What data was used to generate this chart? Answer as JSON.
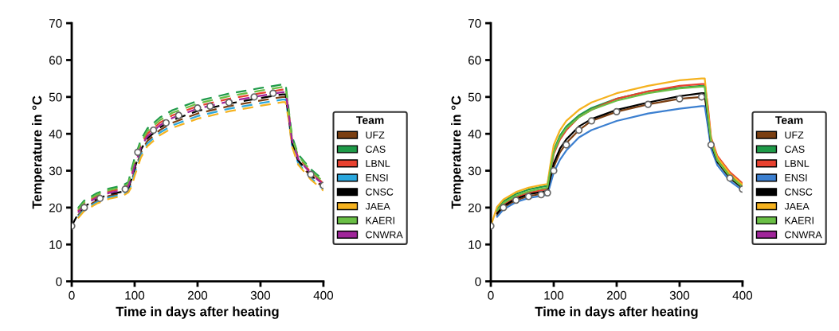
{
  "chart_data": [
    {
      "type": "line",
      "line_style": "dashed",
      "xlabel": "Time in days after heating",
      "ylabel": "Temperature in °C",
      "legend_title": "Team",
      "legend": "right",
      "grid": false,
      "marker": "none",
      "xlim": [
        0,
        400
      ],
      "ylim": [
        0,
        70
      ],
      "xticks": [
        0,
        100,
        200,
        300,
        400
      ],
      "yticks": [
        0,
        10,
        20,
        30,
        40,
        50,
        60,
        70
      ],
      "x": [
        0,
        10,
        20,
        40,
        60,
        80,
        90,
        95,
        100,
        110,
        120,
        140,
        160,
        200,
        250,
        300,
        335,
        340,
        345,
        350,
        360,
        380,
        400
      ],
      "series": [
        {
          "name": "UFZ",
          "color": "#7b3f12",
          "values": [
            null,
            17.9,
            19.9,
            21.9,
            23.2,
            23.9,
            24.9,
            27,
            30,
            35,
            38,
            41,
            43,
            45.5,
            47.5,
            49,
            50,
            50,
            44.4,
            37.4,
            32.4,
            28.4,
            25.4
          ]
        },
        {
          "name": "CAS",
          "color": "#1e9a48",
          "values": [
            null,
            19.9,
            21.9,
            23.9,
            25.2,
            25.9,
            26.9,
            30.4,
            33.4,
            38.4,
            41.4,
            44.4,
            46.4,
            48.9,
            50.9,
            52.4,
            53.4,
            53.4,
            46.4,
            39.4,
            34.4,
            30.4,
            27.4
          ]
        },
        {
          "name": "LBNL",
          "color": "#e8412f",
          "values": [
            null,
            19.1,
            21.1,
            23.1,
            24.4,
            25.1,
            26.1,
            29,
            32,
            37,
            40,
            43,
            45,
            47.5,
            49.5,
            51,
            52,
            52,
            45.6,
            38.6,
            33.6,
            29.6,
            26.6
          ]
        },
        {
          "name": "ENSI",
          "color": "#2aa7dd",
          "values": [
            null,
            17.5,
            19.5,
            21.5,
            22.8,
            23.5,
            24.5,
            26.3,
            29.3,
            34.3,
            37.3,
            40.3,
            42.3,
            44.8,
            46.8,
            48.3,
            49.3,
            49.3,
            44,
            37,
            32,
            28,
            25
          ]
        },
        {
          "name": "CNSC",
          "color": "#000000",
          "values": [
            15,
            18.3,
            20.3,
            22.3,
            23.6,
            24.3,
            25.3,
            27.7,
            30.7,
            35.7,
            38.7,
            41.7,
            43.7,
            46.2,
            48.2,
            49.7,
            50.7,
            50.7,
            44.8,
            37.8,
            32.8,
            28.8,
            25.8
          ]
        },
        {
          "name": "JAEA",
          "color": "#f5b21f",
          "values": [
            null,
            17.1,
            19.1,
            21.1,
            22.4,
            23.1,
            24.1,
            25.6,
            28.6,
            33.6,
            36.6,
            39.6,
            41.6,
            44.1,
            46.1,
            47.6,
            48.6,
            48.6,
            43.6,
            36.6,
            31.6,
            27.6,
            24.6
          ]
        },
        {
          "name": "KAERI",
          "color": "#6abf45",
          "values": [
            null,
            19.5,
            21.5,
            23.5,
            24.8,
            25.5,
            26.5,
            29.7,
            32.7,
            37.7,
            40.7,
            43.7,
            45.7,
            48.2,
            50.2,
            51.7,
            52.7,
            52.7,
            46,
            39,
            34,
            30,
            27
          ]
        },
        {
          "name": "CNWRA",
          "color": "#a0259a",
          "values": [
            null,
            18.7,
            20.7,
            22.7,
            24,
            24.7,
            25.7,
            28.3,
            31.3,
            36.3,
            39.3,
            42.3,
            44.3,
            46.8,
            48.8,
            50.3,
            51.3,
            51.3,
            45.2,
            38.2,
            33.2,
            29.2,
            26.2
          ]
        },
        {
          "type": "scatter",
          "marker": "circle",
          "color": "#666666",
          "x": [
            0,
            20,
            45,
            85,
            105,
            130,
            150,
            170,
            200,
            220,
            250,
            290,
            320,
            380,
            400
          ],
          "values": [
            15,
            20,
            22.5,
            25,
            35,
            41,
            43,
            45,
            47,
            47.5,
            48.5,
            50,
            51,
            29,
            26
          ]
        }
      ]
    },
    {
      "type": "line",
      "line_style": "solid",
      "xlabel": "Time in days after heating",
      "ylabel": "Temperature in °C",
      "legend_title": "Team",
      "legend": "right",
      "grid": false,
      "marker": "none",
      "xlim": [
        0,
        400
      ],
      "ylim": [
        0,
        70
      ],
      "xticks": [
        0,
        100,
        200,
        300,
        400
      ],
      "yticks": [
        0,
        10,
        20,
        30,
        40,
        50,
        60,
        70
      ],
      "x": [
        0,
        10,
        20,
        40,
        60,
        80,
        90,
        95,
        100,
        110,
        120,
        140,
        160,
        200,
        250,
        300,
        335,
        340,
        345,
        350,
        360,
        380,
        400
      ],
      "series": [
        {
          "name": "UFZ",
          "color": "#7b3f12",
          "values": [
            null,
            18,
            20,
            22,
            23.1,
            23.7,
            24,
            27,
            31,
            35,
            37.5,
            41,
            43.5,
            46,
            48,
            49.5,
            50,
            50,
            44,
            37,
            32,
            null,
            null
          ]
        },
        {
          "name": "CAS",
          "color": "#1e9a48",
          "values": [
            null,
            19.7,
            21.7,
            23.7,
            24.9,
            25.6,
            25.9,
            31,
            35.5,
            39.5,
            42,
            45,
            47,
            49.5,
            51.5,
            52.5,
            53,
            53,
            45.5,
            38.2,
            33.2,
            28.8,
            25.9
          ]
        },
        {
          "name": "LBNL",
          "color": "#e8412f",
          "values": [
            null,
            18.8,
            20.8,
            22.8,
            24,
            24.7,
            25,
            30,
            34.5,
            38.5,
            41,
            44.5,
            46.5,
            49.5,
            51.5,
            53,
            53.5,
            53.5,
            47.5,
            39,
            34,
            29.6,
            26.6
          ]
        },
        {
          "name": "ENSI",
          "color": "#3b7fd0",
          "values": [
            null,
            17.5,
            19.5,
            21.5,
            22.6,
            23.2,
            23.5,
            26.5,
            29.5,
            33,
            35.5,
            39,
            41,
            43.5,
            45.5,
            46.8,
            47.5,
            47.5,
            42,
            36,
            31.5,
            27.2,
            24.7
          ]
        },
        {
          "name": "CNSC",
          "color": "#000000",
          "values": [
            null,
            18.4,
            20.4,
            22.4,
            23.6,
            24.2,
            24.5,
            28.5,
            32,
            36,
            38.5,
            42,
            44,
            46.5,
            48.5,
            50.2,
            51,
            51,
            44.5,
            37.4,
            32.4,
            28,
            25.3
          ]
        },
        {
          "name": "JAEA",
          "color": "#f5b21f",
          "values": [
            15,
            20.2,
            22.2,
            24.2,
            25.4,
            26.1,
            26.4,
            32,
            37,
            41,
            43.5,
            46.5,
            48.5,
            51,
            53,
            54.5,
            55,
            55,
            46.5,
            38.6,
            33.6,
            29.2,
            26.2
          ]
        },
        {
          "name": "KAERI",
          "color": "#6abf45",
          "values": [
            null,
            19.2,
            21.2,
            23.2,
            24.4,
            25.1,
            25.4,
            30.5,
            35,
            39,
            41.5,
            44.5,
            46.5,
            49,
            51,
            52.3,
            52.8,
            52.8,
            45,
            37.8,
            32.8,
            28.4,
            25.6
          ]
        },
        {
          "name": "CNWRA",
          "color": "#a0259a",
          "values": [
            null,
            null,
            null,
            null,
            null,
            null,
            null,
            null,
            null,
            null,
            null,
            null,
            null,
            null,
            null,
            null,
            null,
            null,
            null,
            null,
            null,
            null,
            null
          ]
        },
        {
          "type": "scatter",
          "marker": "circle",
          "color": "#666666",
          "x": [
            0,
            20,
            40,
            60,
            80,
            90,
            100,
            120,
            140,
            160,
            200,
            250,
            300,
            335,
            350,
            380,
            400
          ],
          "values": [
            15,
            20,
            22,
            23,
            23.5,
            24,
            30,
            37,
            41,
            43.5,
            46,
            48,
            49.5,
            50,
            37,
            28,
            25
          ]
        }
      ]
    }
  ]
}
